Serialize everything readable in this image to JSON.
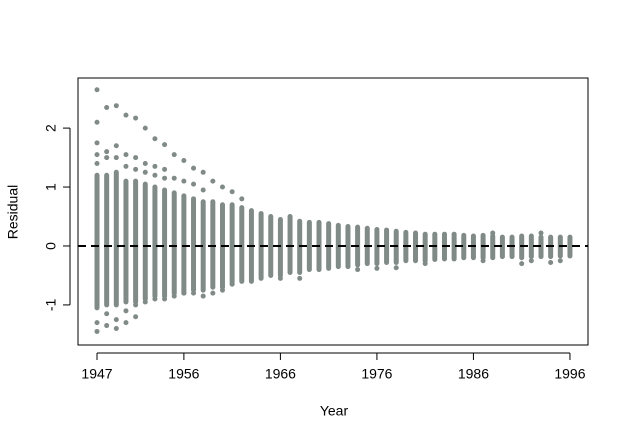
{
  "chart_data": {
    "type": "strip-range",
    "x_label": "Year",
    "y_label": "Residual",
    "color": "#808a87",
    "xlim": [
      1945.03,
      1997.87
    ],
    "ylim": [
      -1.68,
      2.85
    ],
    "xticks": [
      1947,
      1956,
      1966,
      1976,
      1986,
      1996
    ],
    "yticks": [
      -1,
      0,
      1,
      2
    ],
    "hline": 0,
    "x": [
      1947,
      1948,
      1949,
      1950,
      1951,
      1952,
      1953,
      1954,
      1955,
      1956,
      1957,
      1958,
      1959,
      1960,
      1961,
      1962,
      1963,
      1964,
      1965,
      1966,
      1967,
      1968,
      1969,
      1970,
      1971,
      1972,
      1973,
      1974,
      1975,
      1976,
      1977,
      1978,
      1979,
      1980,
      1981,
      1982,
      1983,
      1984,
      1985,
      1986,
      1987,
      1988,
      1989,
      1990,
      1991,
      1992,
      1993,
      1994,
      1995,
      1996
    ],
    "low": [
      -1.05,
      -1.0,
      -1.0,
      -0.95,
      -0.95,
      -0.9,
      -0.85,
      -0.85,
      -0.8,
      -0.8,
      -0.75,
      -0.75,
      -0.7,
      -0.7,
      -0.65,
      -0.6,
      -0.6,
      -0.55,
      -0.5,
      -0.5,
      -0.45,
      -0.45,
      -0.4,
      -0.4,
      -0.38,
      -0.35,
      -0.35,
      -0.32,
      -0.3,
      -0.3,
      -0.28,
      -0.28,
      -0.25,
      -0.25,
      -0.25,
      -0.23,
      -0.22,
      -0.22,
      -0.2,
      -0.2,
      -0.2,
      -0.2,
      -0.18,
      -0.18,
      -0.2,
      -0.18,
      -0.18,
      -0.18,
      -0.17,
      -0.17
    ],
    "high": [
      1.2,
      1.2,
      1.25,
      1.1,
      1.1,
      1.05,
      1.0,
      0.95,
      0.9,
      0.85,
      0.8,
      0.75,
      0.75,
      0.7,
      0.7,
      0.65,
      0.6,
      0.55,
      0.5,
      0.45,
      0.5,
      0.42,
      0.4,
      0.4,
      0.38,
      0.35,
      0.33,
      0.32,
      0.3,
      0.28,
      0.27,
      0.25,
      0.23,
      0.22,
      0.2,
      0.2,
      0.2,
      0.2,
      0.18,
      0.17,
      0.18,
      0.17,
      0.15,
      0.15,
      0.17,
      0.17,
      0.15,
      0.15,
      0.15,
      0.15
    ],
    "outliers": [
      [
        2.65,
        2.1,
        1.75,
        1.55,
        1.4,
        -1.3,
        -1.45
      ],
      [
        2.35,
        1.6,
        1.5,
        -1.15,
        -1.35
      ],
      [
        2.38,
        1.7,
        1.5,
        -1.25,
        -1.4
      ],
      [
        2.22,
        1.55,
        1.35,
        -1.1,
        -1.3
      ],
      [
        2.17,
        1.5,
        1.3,
        -1.0,
        -1.2
      ],
      [
        2.0,
        1.4,
        1.25,
        -0.95
      ],
      [
        1.82,
        1.35,
        1.2,
        -0.9
      ],
      [
        1.72,
        1.3,
        1.15,
        -0.9
      ],
      [
        1.55,
        1.15,
        -0.85
      ],
      [
        1.45,
        1.1,
        -0.8
      ],
      [
        1.32,
        1.05,
        -0.8
      ],
      [
        1.25,
        0.95,
        -0.85
      ],
      [
        1.1,
        -0.8
      ],
      [
        1.0,
        -0.75
      ],
      [
        0.92
      ],
      [
        0.8
      ],
      [],
      [],
      [],
      [
        -0.55
      ],
      [],
      [
        -0.55
      ],
      [],
      [],
      [],
      [],
      [],
      [
        -0.4
      ],
      [],
      [
        -0.38
      ],
      [],
      [
        -0.37
      ],
      [],
      [],
      [
        -0.3
      ],
      [],
      [],
      [],
      [],
      [],
      [
        -0.25
      ],
      [
        0.22
      ],
      [],
      [],
      [
        -0.3
      ],
      [
        -0.25
      ],
      [
        0.22
      ],
      [
        -0.28
      ],
      [
        -0.25
      ],
      []
    ]
  }
}
